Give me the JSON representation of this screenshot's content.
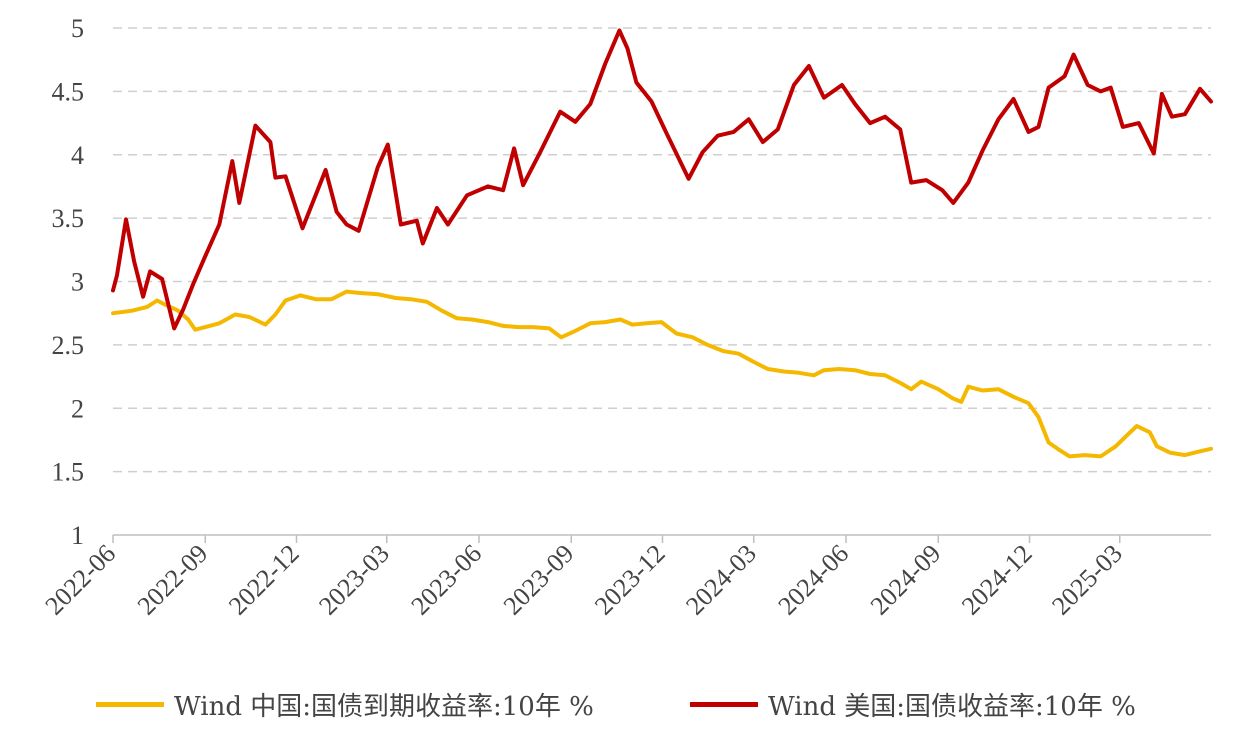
{
  "chart_data": {
    "type": "line",
    "title": "",
    "xlabel": "",
    "ylabel": "",
    "ylim": [
      1,
      5
    ],
    "yticks": [
      "1",
      "1.5",
      "2",
      "2.5",
      "3",
      "3.5",
      "4",
      "4.5",
      "5"
    ],
    "xticks": [
      "2022-06",
      "2022-09",
      "2022-12",
      "2023-03",
      "2023-06",
      "2023-09",
      "2023-12",
      "2024-03",
      "2024-06",
      "2024-09",
      "2024-12",
      "2025-03"
    ],
    "xrange": [
      "2022-06",
      "2025-05"
    ],
    "grid": "horizontal dashed",
    "legend_position": "bottom",
    "series": [
      {
        "name": "Wind 中国:国债到期收益率:10年 %",
        "color": "#F5B800",
        "points": [
          [
            "2022-06-01",
            2.75
          ],
          [
            "2022-06-20",
            2.77
          ],
          [
            "2022-07-05",
            2.8
          ],
          [
            "2022-07-15",
            2.85
          ],
          [
            "2022-07-25",
            2.81
          ],
          [
            "2022-08-05",
            2.77
          ],
          [
            "2022-08-15",
            2.7
          ],
          [
            "2022-08-22",
            2.62
          ],
          [
            "2022-09-01",
            2.64
          ],
          [
            "2022-09-15",
            2.67
          ],
          [
            "2022-10-01",
            2.74
          ],
          [
            "2022-10-15",
            2.72
          ],
          [
            "2022-10-31",
            2.66
          ],
          [
            "2022-11-10",
            2.74
          ],
          [
            "2022-11-20",
            2.85
          ],
          [
            "2022-12-05",
            2.89
          ],
          [
            "2022-12-20",
            2.86
          ],
          [
            "2023-01-05",
            2.86
          ],
          [
            "2023-01-20",
            2.92
          ],
          [
            "2023-02-01",
            2.91
          ],
          [
            "2023-02-20",
            2.9
          ],
          [
            "2023-03-10",
            2.87
          ],
          [
            "2023-03-25",
            2.86
          ],
          [
            "2023-04-10",
            2.84
          ],
          [
            "2023-04-25",
            2.77
          ],
          [
            "2023-05-10",
            2.71
          ],
          [
            "2023-05-25",
            2.7
          ],
          [
            "2023-06-10",
            2.68
          ],
          [
            "2023-06-25",
            2.65
          ],
          [
            "2023-07-10",
            2.64
          ],
          [
            "2023-07-25",
            2.64
          ],
          [
            "2023-08-10",
            2.63
          ],
          [
            "2023-08-22",
            2.56
          ],
          [
            "2023-09-05",
            2.61
          ],
          [
            "2023-09-20",
            2.67
          ],
          [
            "2023-10-05",
            2.68
          ],
          [
            "2023-10-20",
            2.7
          ],
          [
            "2023-11-01",
            2.66
          ],
          [
            "2023-11-15",
            2.67
          ],
          [
            "2023-11-30",
            2.68
          ],
          [
            "2023-12-15",
            2.59
          ],
          [
            "2023-12-31",
            2.56
          ],
          [
            "2024-01-15",
            2.5
          ],
          [
            "2024-01-31",
            2.45
          ],
          [
            "2024-02-15",
            2.43
          ],
          [
            "2024-02-29",
            2.37
          ],
          [
            "2024-03-15",
            2.31
          ],
          [
            "2024-03-31",
            2.29
          ],
          [
            "2024-04-15",
            2.28
          ],
          [
            "2024-04-30",
            2.26
          ],
          [
            "2024-05-10",
            2.3
          ],
          [
            "2024-05-25",
            2.31
          ],
          [
            "2024-06-10",
            2.3
          ],
          [
            "2024-06-25",
            2.27
          ],
          [
            "2024-07-10",
            2.26
          ],
          [
            "2024-07-25",
            2.2
          ],
          [
            "2024-08-05",
            2.15
          ],
          [
            "2024-08-15",
            2.21
          ],
          [
            "2024-09-01",
            2.15
          ],
          [
            "2024-09-15",
            2.08
          ],
          [
            "2024-09-24",
            2.05
          ],
          [
            "2024-10-01",
            2.17
          ],
          [
            "2024-10-15",
            2.14
          ],
          [
            "2024-10-31",
            2.15
          ],
          [
            "2024-11-15",
            2.09
          ],
          [
            "2024-11-30",
            2.04
          ],
          [
            "2024-12-10",
            1.93
          ],
          [
            "2024-12-20",
            1.73
          ],
          [
            "2024-12-31",
            1.67
          ],
          [
            "2025-01-10",
            1.62
          ],
          [
            "2025-01-25",
            1.63
          ],
          [
            "2025-02-10",
            1.62
          ],
          [
            "2025-02-25",
            1.7
          ],
          [
            "2025-03-10",
            1.8
          ],
          [
            "2025-03-18",
            1.86
          ],
          [
            "2025-03-31",
            1.81
          ],
          [
            "2025-04-07",
            1.7
          ],
          [
            "2025-04-20",
            1.65
          ],
          [
            "2025-05-05",
            1.63
          ],
          [
            "2025-05-20",
            1.66
          ],
          [
            "2025-05-31",
            1.68
          ]
        ]
      },
      {
        "name": "Wind 美国:国债收益率:10年 %",
        "color": "#C00000",
        "points": [
          [
            "2022-06-01",
            2.93
          ],
          [
            "2022-06-05",
            3.05
          ],
          [
            "2022-06-14",
            3.49
          ],
          [
            "2022-06-22",
            3.16
          ],
          [
            "2022-07-01",
            2.88
          ],
          [
            "2022-07-08",
            3.08
          ],
          [
            "2022-07-20",
            3.02
          ],
          [
            "2022-08-01",
            2.63
          ],
          [
            "2022-08-10",
            2.78
          ],
          [
            "2022-08-20",
            2.98
          ],
          [
            "2022-09-01",
            3.2
          ],
          [
            "2022-09-15",
            3.45
          ],
          [
            "2022-09-28",
            3.95
          ],
          [
            "2022-10-05",
            3.62
          ],
          [
            "2022-10-21",
            4.23
          ],
          [
            "2022-11-05",
            4.1
          ],
          [
            "2022-11-10",
            3.82
          ],
          [
            "2022-11-20",
            3.83
          ],
          [
            "2022-12-07",
            3.42
          ],
          [
            "2022-12-20",
            3.68
          ],
          [
            "2022-12-30",
            3.88
          ],
          [
            "2023-01-10",
            3.55
          ],
          [
            "2023-01-20",
            3.45
          ],
          [
            "2023-02-01",
            3.4
          ],
          [
            "2023-02-20",
            3.9
          ],
          [
            "2023-03-02",
            4.08
          ],
          [
            "2023-03-15",
            3.45
          ],
          [
            "2023-03-31",
            3.48
          ],
          [
            "2023-04-06",
            3.3
          ],
          [
            "2023-04-20",
            3.58
          ],
          [
            "2023-05-01",
            3.45
          ],
          [
            "2023-05-20",
            3.68
          ],
          [
            "2023-06-10",
            3.75
          ],
          [
            "2023-06-25",
            3.72
          ],
          [
            "2023-07-06",
            4.05
          ],
          [
            "2023-07-15",
            3.76
          ],
          [
            "2023-08-01",
            4.02
          ],
          [
            "2023-08-21",
            4.34
          ],
          [
            "2023-09-05",
            4.26
          ],
          [
            "2023-09-20",
            4.4
          ],
          [
            "2023-10-05",
            4.72
          ],
          [
            "2023-10-19",
            4.98
          ],
          [
            "2023-10-27",
            4.84
          ],
          [
            "2023-11-05",
            4.57
          ],
          [
            "2023-11-20",
            4.42
          ],
          [
            "2023-12-05",
            4.17
          ],
          [
            "2023-12-27",
            3.81
          ],
          [
            "2024-01-10",
            4.02
          ],
          [
            "2024-01-25",
            4.15
          ],
          [
            "2024-02-10",
            4.18
          ],
          [
            "2024-02-25",
            4.28
          ],
          [
            "2024-03-10",
            4.1
          ],
          [
            "2024-03-25",
            4.2
          ],
          [
            "2024-04-10",
            4.55
          ],
          [
            "2024-04-25",
            4.7
          ],
          [
            "2024-05-10",
            4.45
          ],
          [
            "2024-05-28",
            4.55
          ],
          [
            "2024-06-10",
            4.4
          ],
          [
            "2024-06-25",
            4.25
          ],
          [
            "2024-07-10",
            4.3
          ],
          [
            "2024-07-25",
            4.2
          ],
          [
            "2024-08-05",
            3.78
          ],
          [
            "2024-08-20",
            3.8
          ],
          [
            "2024-09-05",
            3.72
          ],
          [
            "2024-09-16",
            3.62
          ],
          [
            "2024-10-01",
            3.78
          ],
          [
            "2024-10-15",
            4.03
          ],
          [
            "2024-10-31",
            4.28
          ],
          [
            "2024-11-15",
            4.44
          ],
          [
            "2024-11-30",
            4.18
          ],
          [
            "2024-12-10",
            4.22
          ],
          [
            "2024-12-20",
            4.53
          ],
          [
            "2025-01-05",
            4.62
          ],
          [
            "2025-01-14",
            4.79
          ],
          [
            "2025-01-28",
            4.55
          ],
          [
            "2025-02-10",
            4.5
          ],
          [
            "2025-02-20",
            4.53
          ],
          [
            "2025-03-04",
            4.22
          ],
          [
            "2025-03-20",
            4.25
          ],
          [
            "2025-04-04",
            4.01
          ],
          [
            "2025-04-12",
            4.48
          ],
          [
            "2025-04-22",
            4.3
          ],
          [
            "2025-05-05",
            4.32
          ],
          [
            "2025-05-20",
            4.52
          ],
          [
            "2025-05-31",
            4.42
          ]
        ]
      }
    ]
  }
}
